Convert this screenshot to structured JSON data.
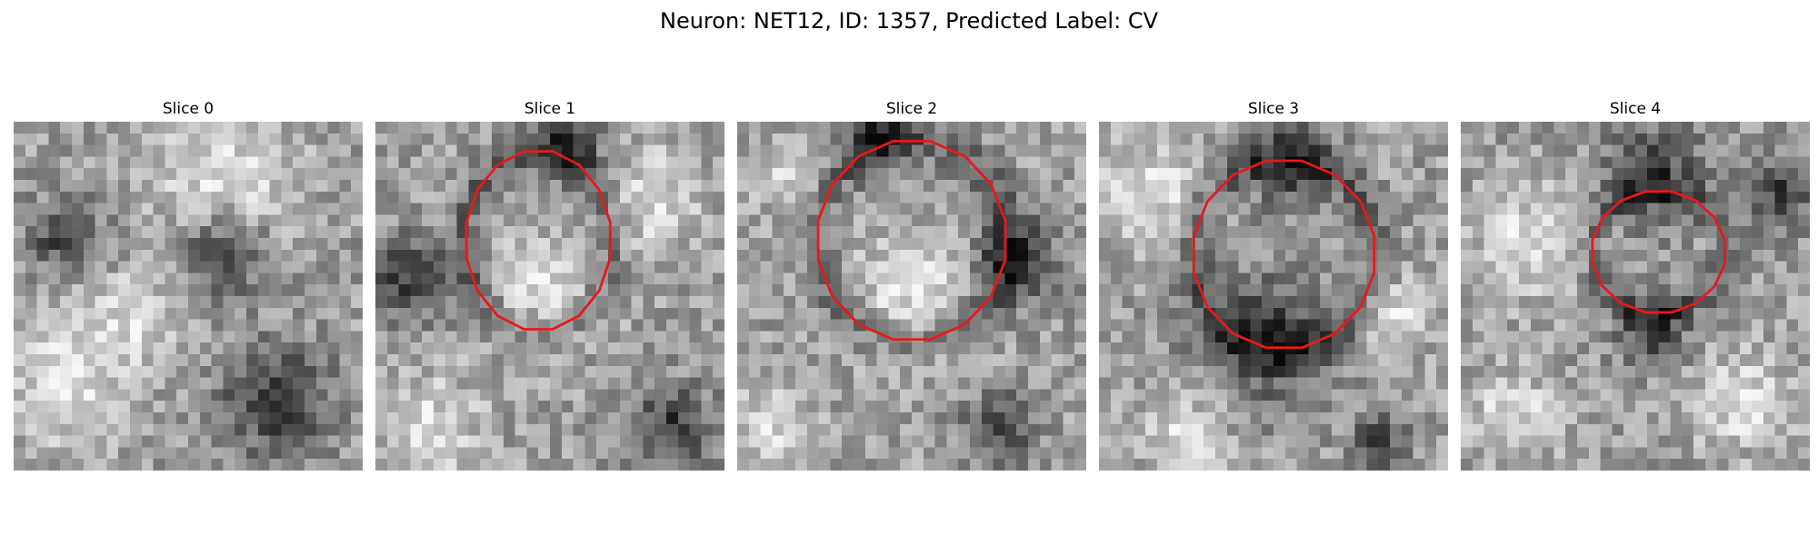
{
  "figure": {
    "title": "Neuron: NET12, ID: 1357, Predicted Label: CV"
  },
  "panels": [
    {
      "title": "Slice 0",
      "has_outline": false,
      "seed": 11,
      "dark_blobs": [
        [
          0.15,
          0.33,
          0.1
        ],
        [
          0.75,
          0.8,
          0.16
        ],
        [
          0.6,
          0.38,
          0.12
        ]
      ],
      "light_blobs": [
        [
          0.6,
          0.15,
          0.2
        ],
        [
          0.15,
          0.75,
          0.18
        ],
        [
          0.35,
          0.55,
          0.12
        ]
      ]
    },
    {
      "title": "Slice 1",
      "has_outline": true,
      "seed": 23,
      "dark_blobs": [
        [
          0.85,
          0.88,
          0.12
        ],
        [
          0.55,
          0.08,
          0.1
        ],
        [
          0.1,
          0.45,
          0.12
        ]
      ],
      "light_blobs": [
        [
          0.48,
          0.48,
          0.16
        ],
        [
          0.15,
          0.88,
          0.15
        ],
        [
          0.8,
          0.22,
          0.14
        ]
      ]
    },
    {
      "title": "Slice 2",
      "has_outline": true,
      "seed": 37,
      "dark_blobs": [
        [
          0.8,
          0.4,
          0.12
        ],
        [
          0.75,
          0.88,
          0.1
        ],
        [
          0.4,
          0.05,
          0.1
        ]
      ],
      "light_blobs": [
        [
          0.5,
          0.5,
          0.18
        ],
        [
          0.1,
          0.88,
          0.12
        ],
        [
          0.15,
          0.15,
          0.1
        ]
      ]
    },
    {
      "title": "Slice 3",
      "has_outline": true,
      "seed": 51,
      "dark_blobs": [
        [
          0.48,
          0.62,
          0.18
        ],
        [
          0.55,
          0.12,
          0.12
        ],
        [
          0.8,
          0.93,
          0.08
        ]
      ],
      "light_blobs": [
        [
          0.15,
          0.2,
          0.16
        ],
        [
          0.85,
          0.55,
          0.1
        ],
        [
          0.25,
          0.9,
          0.12
        ]
      ]
    },
    {
      "title": "Slice 4",
      "has_outline": true,
      "seed": 67,
      "dark_blobs": [
        [
          0.55,
          0.15,
          0.14
        ],
        [
          0.55,
          0.6,
          0.1
        ],
        [
          0.92,
          0.2,
          0.1
        ]
      ],
      "light_blobs": [
        [
          0.2,
          0.35,
          0.16
        ],
        [
          0.8,
          0.8,
          0.14
        ],
        [
          0.15,
          0.85,
          0.12
        ]
      ]
    }
  ],
  "colors": {
    "outline": "#e8191a",
    "background": "#ffffff"
  }
}
